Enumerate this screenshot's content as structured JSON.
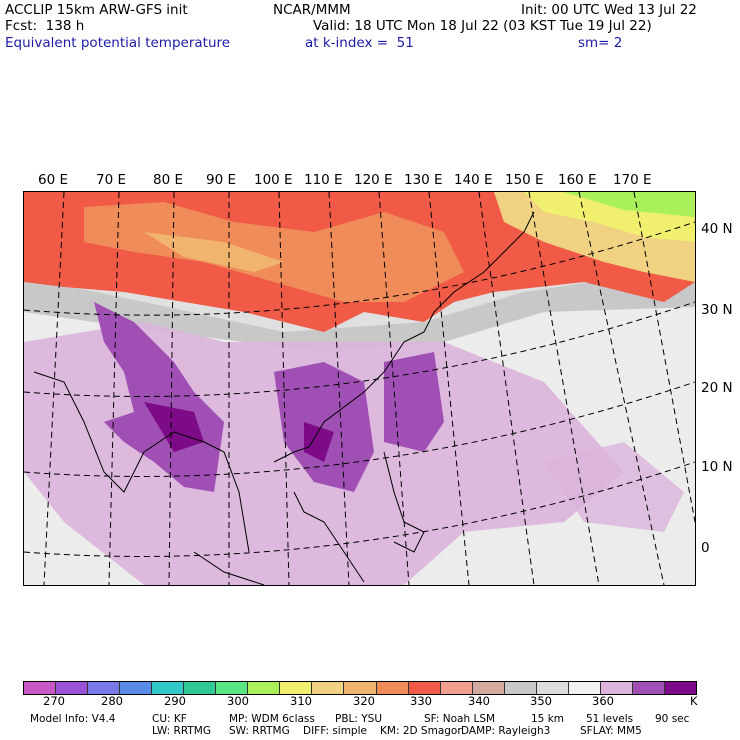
{
  "header": {
    "left1": "ACCLIP 15km ARW-GFS init",
    "left2": "Fcst:  138 h",
    "left3": "Equivalent potential temperature",
    "center1": "NCAR/MMM",
    "init": "Init: 00 UTC Wed 13 Jul 22",
    "valid": "Valid: 18 UTC Mon 18 Jul 22 (03 KST Tue 19 Jul 22)",
    "kindex": "at k-index =  51",
    "sm": "sm= 2"
  },
  "map": {
    "lon_labels": [
      "60 E",
      "70 E",
      "80 E",
      "90 E",
      "100 E",
      "110 E",
      "120 E",
      "130 E",
      "140 E",
      "150 E",
      "160 E",
      "170 E"
    ],
    "lat_labels": [
      "40 N",
      "30 N",
      "20 N",
      "10 N",
      "0"
    ]
  },
  "colorbar": {
    "colors": [
      "#c85ac8",
      "#9a55d6",
      "#7878e6",
      "#5a8ce6",
      "#32c8c8",
      "#32c896",
      "#5ae682",
      "#aaf05a",
      "#f0f06e",
      "#f0d282",
      "#f0b46e",
      "#f08c5a",
      "#f05a46",
      "#f0a08c",
      "#d2aaa0",
      "#c8c8c8",
      "#dcdcdc",
      "#f0f0f0",
      "#dcb4dc",
      "#a050b4",
      "#7d0a87"
    ],
    "labels": [
      "270",
      "280",
      "290",
      "300",
      "310",
      "320",
      "330",
      "340",
      "350",
      "360",
      "K"
    ]
  },
  "footer": {
    "line1_a": "Model Info: V4.4",
    "line1_b": "CU: KF",
    "line1_c": "MP: WDM 6class",
    "line1_d": "PBL: YSU",
    "line1_e": "SF: Noah LSM",
    "line1_f": "15 km",
    "line1_g": "51 levels",
    "line1_h": "90 sec",
    "line2_a": "LW: RRTMG",
    "line2_b": "SW: RRTMG",
    "line2_c": "DIFF: simple",
    "line2_d": "KM: 2D Smagor",
    "line2_e": "DAMP: Rayleigh3",
    "line2_f": "SFLAY: MM5"
  }
}
